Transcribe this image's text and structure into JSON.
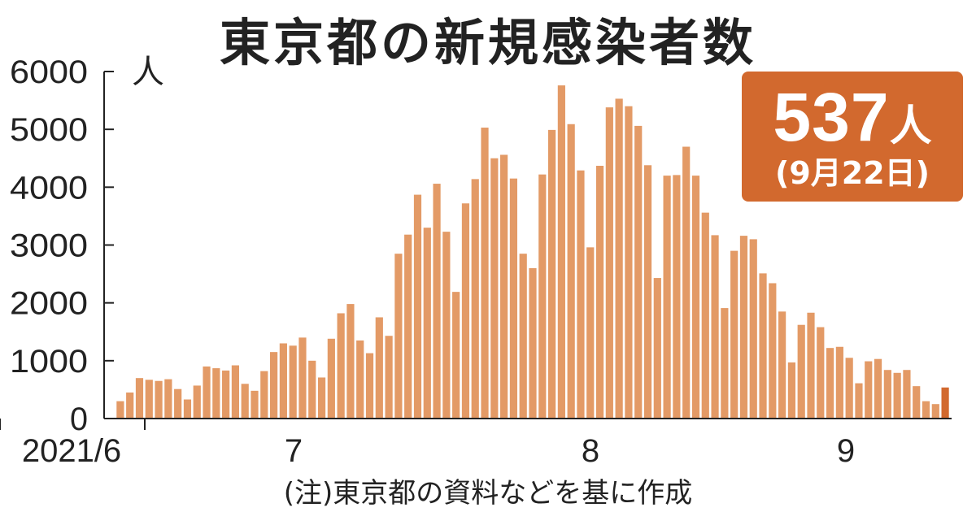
{
  "title": "東京都の新規感染者数",
  "colors": {
    "bar": "#e39a66",
    "highlight": "#d2692e",
    "callout_bg": "#d2692e"
  },
  "callout": {
    "value": "537",
    "unit": "人",
    "date": "(9月22日)"
  },
  "note": "(注)東京都の資料などを基に作成",
  "chart_data": {
    "type": "bar",
    "title": "東京都の新規感染者数",
    "ylabel": "人",
    "ylim": [
      0,
      6000
    ],
    "yticks": [
      "0",
      "1000",
      "2000",
      "3000",
      "4000",
      "5000",
      "6000"
    ],
    "xtick_labels": [
      "2021/6",
      "7",
      "8",
      "9"
    ],
    "x_start": "2021/6/13",
    "x_end": "2021/9/22",
    "highlight_last": true,
    "values": [
      300,
      450,
      700,
      670,
      650,
      680,
      510,
      330,
      570,
      900,
      870,
      830,
      920,
      600,
      480,
      820,
      1150,
      1300,
      1260,
      1400,
      1000,
      710,
      1380,
      1820,
      1980,
      1350,
      1130,
      1750,
      1430,
      2850,
      3180,
      3870,
      3300,
      4060,
      3230,
      2190,
      3720,
      4140,
      5030,
      4500,
      4560,
      4150,
      2850,
      2600,
      4220,
      4990,
      5760,
      5090,
      4290,
      2960,
      4370,
      5380,
      5530,
      5400,
      5060,
      4380,
      2430,
      4200,
      4210,
      4700,
      4200,
      3560,
      3170,
      1910,
      2900,
      3160,
      3100,
      2510,
      2340,
      1850,
      970,
      1620,
      1830,
      1580,
      1220,
      1240,
      1050,
      610,
      990,
      1030,
      840,
      790,
      840,
      560,
      300,
      250,
      537
    ]
  }
}
